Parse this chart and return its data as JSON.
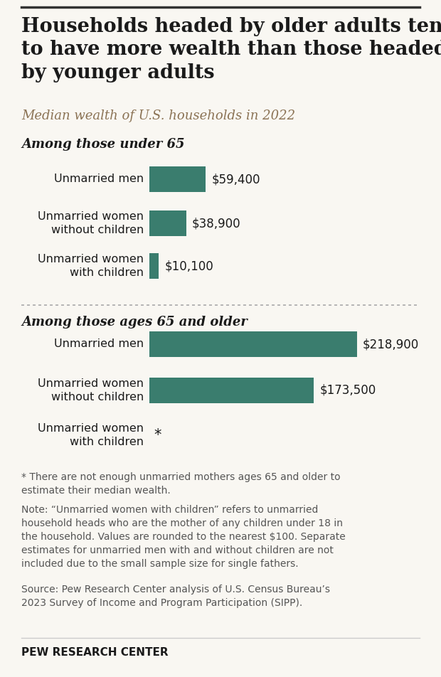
{
  "title": "Households headed by older adults tend\nto have more wealth than those headed\nby younger adults",
  "subtitle": "Median wealth of U.S. households in 2022",
  "group1_label": "Among those under 65",
  "group2_label": "Among those ages 65 and older",
  "categories": [
    "Unmarried men",
    "Unmarried women\nwithout children",
    "Unmarried women\nwith children",
    "Unmarried men",
    "Unmarried women\nwithout children",
    "Unmarried women\nwith children"
  ],
  "values": [
    59400,
    38900,
    10100,
    218900,
    173500,
    0
  ],
  "labels": [
    "$59,400",
    "$38,900",
    "$10,100",
    "$218,900",
    "$173,500",
    "*"
  ],
  "bar_color": "#3a7d6e",
  "max_value": 240000,
  "footnote1": "* There are not enough unmarried mothers ages 65 and older to\nestimate their median wealth.",
  "footnote2": "Note: “Unmarried women with children” refers to unmarried\nhousehold heads who are the mother of any children under 18 in\nthe household. Values are rounded to the nearest $100. Separate\nestimates for unmarried men with and without children are not\nincluded due to the small sample size for single fathers.",
  "footnote3": "Source: Pew Research Center analysis of U.S. Census Bureau’s\n2023 Survey of Income and Program Participation (SIPP).",
  "source_label": "PEW RESEARCH CENTER",
  "background_color": "#f9f7f2",
  "title_color": "#1a1a1a",
  "subtitle_color": "#8b7355",
  "group_label_color": "#1a1a1a",
  "bar_label_color": "#1a1a1a",
  "footnote_color": "#555555"
}
